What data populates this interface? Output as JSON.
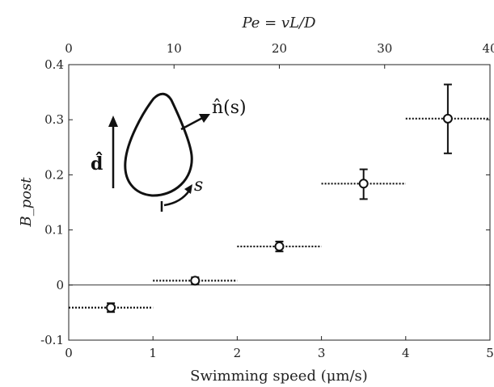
{
  "chart_data": {
    "type": "scatter",
    "title": "",
    "xlabel": "Swimming speed (μm/s)",
    "ylabel": "B_post",
    "top_xlabel": "Pe = vL/D",
    "xlim": [
      0,
      5
    ],
    "ylim": [
      -0.1,
      0.4
    ],
    "top_xlim": [
      0,
      40
    ],
    "x_ticks": [
      "0",
      "1",
      "2",
      "3",
      "4",
      "5"
    ],
    "y_ticks": [
      "-0.1",
      "0",
      "0.1",
      "0.2",
      "0.3",
      "0.4"
    ],
    "top_x_ticks": [
      "0",
      "10",
      "20",
      "30",
      "40"
    ],
    "grid": false,
    "zero_line": true,
    "series": [
      {
        "points": [
          {
            "x": 0.5,
            "y": -0.041,
            "err_low": 0.008,
            "err_high": 0.008,
            "x_from": 0,
            "x_to": 1
          },
          {
            "x": 1.5,
            "y": 0.008,
            "err_low": 0.006,
            "err_high": 0.006,
            "x_from": 1,
            "x_to": 2
          },
          {
            "x": 2.5,
            "y": 0.07,
            "err_low": 0.009,
            "err_high": 0.009,
            "x_from": 2,
            "x_to": 3
          },
          {
            "x": 3.5,
            "y": 0.184,
            "err_low": 0.028,
            "err_high": 0.026,
            "x_from": 3,
            "x_to": 4
          },
          {
            "x": 4.5,
            "y": 0.302,
            "err_low": 0.063,
            "err_high": 0.062,
            "x_from": 4,
            "x_to": 5
          }
        ]
      }
    ],
    "inset": {
      "direction_label": "d̂",
      "normal_label": "n̂(s)",
      "arc_label": "s"
    }
  }
}
